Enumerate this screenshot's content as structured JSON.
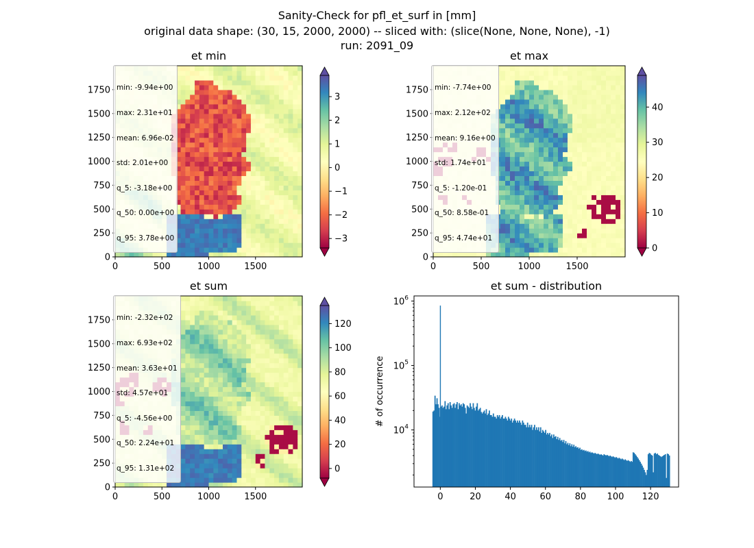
{
  "suptitle": {
    "line1": "Sanity-Check for pfl_et_surf in [mm]",
    "line2": "original data shape: (30, 15, 2000, 2000) -- sliced with: (slice(None, None, None), -1)",
    "line3": "run: 2091_09"
  },
  "colors": {
    "spectral": [
      "#9e0142",
      "#d53e4f",
      "#f46d43",
      "#fdae61",
      "#fee08b",
      "#ffffbf",
      "#e6f598",
      "#abdda4",
      "#66c2a5",
      "#3288bd",
      "#5e4fa2"
    ],
    "hist_bar": "#1f77b4"
  },
  "chart_data": [
    {
      "type": "heatmap",
      "name": "et_min",
      "title": "et min",
      "xlim": [
        0,
        2000
      ],
      "ylim": [
        0,
        2000
      ],
      "xticks": [
        0,
        500,
        1000,
        1500
      ],
      "yticks": [
        0,
        250,
        500,
        750,
        1000,
        1250,
        1500,
        1750
      ],
      "colorbar": {
        "range": [
          -3.4,
          3.9
        ],
        "ticks": [
          -3,
          -2,
          -1,
          0,
          1,
          2,
          3
        ],
        "extend": "both",
        "colormap": "Spectral"
      },
      "stats": [
        "min: -9.94e+00",
        "max: 2.31e+01",
        "mean: 6.96e-02",
        "std: 2.01e+00",
        "q_5: -3.18e+00",
        "q_50: 0.00e+00",
        "q_95: 3.78e+00"
      ]
    },
    {
      "type": "heatmap",
      "name": "et_max",
      "title": "et max",
      "xlim": [
        0,
        2000
      ],
      "ylim": [
        0,
        2000
      ],
      "xticks": [
        0,
        500,
        1000,
        1500
      ],
      "yticks": [
        0,
        250,
        500,
        750,
        1000,
        1250,
        1500,
        1750
      ],
      "colorbar": {
        "range": [
          0,
          49
        ],
        "ticks": [
          0,
          10,
          20,
          30,
          40
        ],
        "extend": "both",
        "colormap": "Spectral"
      },
      "stats": [
        "min: -7.74e+00",
        "max: 2.12e+02",
        "mean: 9.16e+00",
        "std: 1.74e+01",
        "q_5: -1.20e-01",
        "q_50: 8.58e-01",
        "q_95: 4.74e+01"
      ]
    },
    {
      "type": "heatmap",
      "name": "et_sum",
      "title": "et sum",
      "xlim": [
        0,
        2000
      ],
      "ylim": [
        0,
        2000
      ],
      "xticks": [
        0,
        500,
        1000,
        1500
      ],
      "yticks": [
        0,
        250,
        500,
        750,
        1000,
        1250,
        1500,
        1750
      ],
      "colorbar": {
        "range": [
          -8,
          135
        ],
        "ticks": [
          0,
          20,
          40,
          60,
          80,
          100,
          120
        ],
        "extend": "both",
        "colormap": "Spectral"
      },
      "stats": [
        "min: -2.32e+02",
        "max: 6.93e+02",
        "mean: 3.63e+01",
        "std: 4.57e+01",
        "q_5: -4.56e+00",
        "q_50: 2.24e+01",
        "q_95: 1.31e+02"
      ]
    },
    {
      "type": "bar",
      "name": "et_sum_distribution",
      "title": "et sum - distribution",
      "xlabel": "",
      "ylabel": "# of occurrence",
      "xlim": [
        -15,
        136
      ],
      "xticks": [
        0,
        20,
        40,
        60,
        80,
        100,
        120
      ],
      "ylim": [
        1300,
        1200000
      ],
      "yscale": "log",
      "yticks": [
        10000,
        100000,
        1000000
      ],
      "bin_range": [
        -4.5,
        131
      ],
      "spike": {
        "x": 0,
        "count": 850000
      },
      "bin_counts": [
        19300,
        20000,
        34000,
        25000,
        31000,
        25000,
        22000,
        16000,
        23000,
        24000,
        22000,
        23000,
        28000,
        21000,
        24000,
        26000,
        21000,
        27000,
        24000,
        22000,
        25000,
        26000,
        22000,
        25000,
        27000,
        21000,
        26000,
        24000,
        25000,
        23000,
        26000,
        25000,
        22000,
        18000,
        24000,
        23000,
        22000,
        26000,
        23000,
        21000,
        26000,
        22000,
        20000,
        23000,
        26000,
        20000,
        21000,
        22000,
        19000,
        18000,
        19000,
        20000,
        18000,
        21000,
        17000,
        18000,
        20000,
        17000,
        17000,
        16000,
        18000,
        16000,
        16000,
        15000,
        17000,
        16000,
        17000,
        15000,
        16000,
        17000,
        15000,
        15000,
        16000,
        15000,
        14000,
        16000,
        15000,
        14000,
        15000,
        13000,
        14000,
        15000,
        14000,
        13000,
        14000,
        13000,
        14000,
        13000,
        12000,
        14000,
        13000,
        12000,
        12000,
        11000,
        13000,
        11000,
        12000,
        11000,
        12000,
        10000,
        11000,
        12000,
        10000,
        11000,
        10000,
        11000,
        9500,
        11000,
        9000,
        10000,
        9500,
        9000,
        10000,
        8500,
        9000,
        8500,
        9000,
        8000,
        8500,
        7500,
        8500,
        7800,
        8000,
        7200,
        7800,
        7000,
        7500,
        6800,
        7000,
        6500,
        7000,
        6200,
        6700,
        6000,
        6300,
        5800,
        6200,
        5600,
        6000,
        5500,
        5900,
        5400,
        5600,
        5300,
        5400,
        5100,
        5300,
        4900,
        5000,
        4800,
        4900,
        4700,
        4800,
        4600,
        4700,
        4500,
        4600,
        4400,
        4500,
        4400,
        4300,
        4400,
        4300,
        4200,
        4300,
        4200,
        4100,
        4200,
        4100,
        4000,
        4200,
        4100,
        4000,
        4100,
        4000,
        3900,
        4000,
        3900,
        3800,
        3900,
        3800,
        3700,
        3800,
        3700,
        3600,
        3700,
        3600,
        3500,
        3600,
        3500,
        3400,
        3500,
        3400,
        3300,
        3400,
        3300,
        3200,
        3300,
        3200,
        4500,
        4400,
        4200,
        4000,
        3800,
        3600,
        3400,
        3200,
        3000,
        2800,
        2600,
        2400,
        2200,
        2000,
        2400,
        4200,
        4400,
        4300,
        4100,
        4000,
        2200,
        4300,
        4400,
        4200,
        4300,
        4100,
        4000,
        3900,
        3800,
        3900,
        4000,
        4100,
        4200,
        1800,
        4300,
        4200,
        4000
      ]
    }
  ]
}
